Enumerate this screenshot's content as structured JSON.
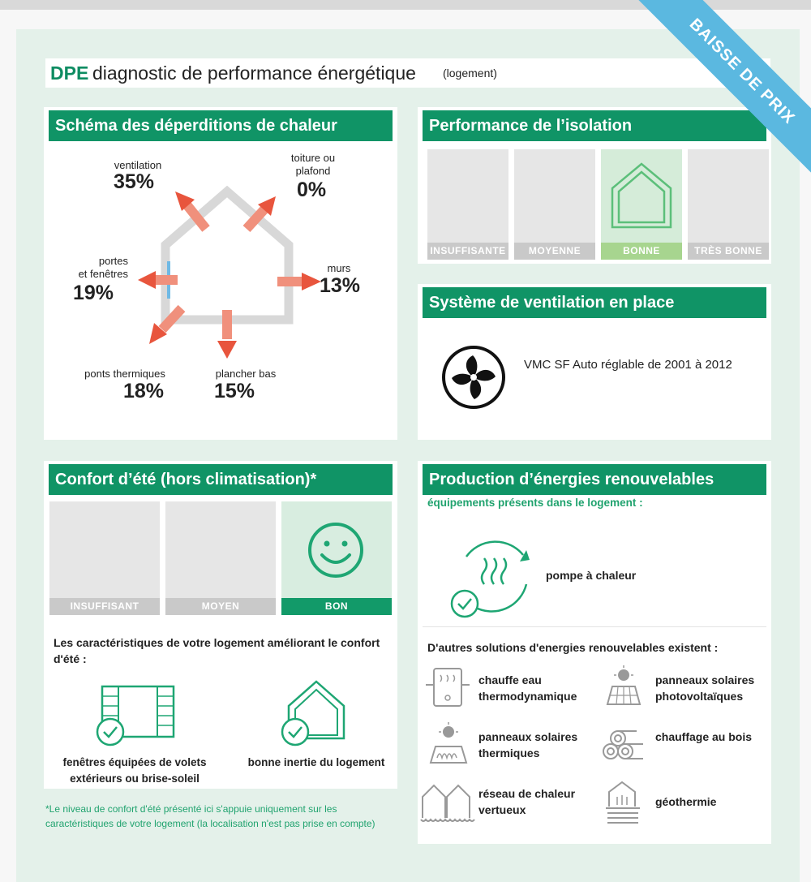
{
  "header": {
    "dpe": "DPE",
    "title": "diagnostic de performance énergétique",
    "subtitle": "(logement)",
    "corner": "3"
  },
  "ribbon": {
    "text": "BAISSE DE PRIX",
    "color": "#5bb8e0"
  },
  "losses": {
    "title": "Schéma des déperditions de chaleur",
    "items": [
      {
        "label": "ventilation",
        "value": "35%"
      },
      {
        "label": "toiture ou\nplafond",
        "value": "0%"
      },
      {
        "label": "portes\net fenêtres",
        "value": "19%"
      },
      {
        "label": "murs",
        "value": "13%"
      },
      {
        "label": "ponts thermiques",
        "value": "18%"
      },
      {
        "label": "plancher bas",
        "value": "15%"
      }
    ]
  },
  "insulation": {
    "title": "Performance de l’isolation",
    "levels": [
      "INSUFFISANTE",
      "MOYENNE",
      "BONNE",
      "TRÈS BONNE"
    ],
    "selected": "BONNE"
  },
  "ventilation": {
    "title": "Système de ventilation en place",
    "icon": "fan-icon",
    "text": "VMC SF Auto réglable de 2001 à 2012"
  },
  "summer": {
    "title": "Confort d’été (hors climatisation)*",
    "levels": [
      "INSUFFISANT",
      "MOYEN",
      "BON"
    ],
    "selected": "BON",
    "features_intro": "Les caractéristiques de votre logement améliorant le confort d'été :",
    "features": [
      {
        "icon": "shutter-window-icon",
        "label": "fenêtres équipées de volets extérieurs ou brise-soleil"
      },
      {
        "icon": "house-inertia-icon",
        "label": "bonne inertie du logement"
      }
    ],
    "footnote": "*Le niveau de confort d'été présenté ici s'appuie uniquement sur les caractéristiques de votre logement (la localisation n'est pas prise en compte)"
  },
  "renewables": {
    "title": "Production d’énergies renouvelables",
    "subtitle": "équipements présents dans le logement :",
    "present": {
      "icon": "heat-pump-icon",
      "label": "pompe à chaleur"
    },
    "others_intro": "D'autres solutions d'energies renouvelables existent :",
    "others": [
      {
        "icon": "water-heater-icon",
        "label": "chauffe eau thermodynamique"
      },
      {
        "icon": "solar-pv-icon",
        "label": "panneaux solaires photovoltaïques"
      },
      {
        "icon": "solar-thermal-icon",
        "label": "panneaux solaires thermiques"
      },
      {
        "icon": "wood-logs-icon",
        "label": "chauffage au bois"
      },
      {
        "icon": "district-heating-icon",
        "label": "réseau de chaleur vertueux"
      },
      {
        "icon": "geothermal-icon",
        "label": "géothermie"
      }
    ]
  },
  "colors": {
    "green": "#109466",
    "accent": "#21a36f",
    "arrow": "#e8553d"
  }
}
